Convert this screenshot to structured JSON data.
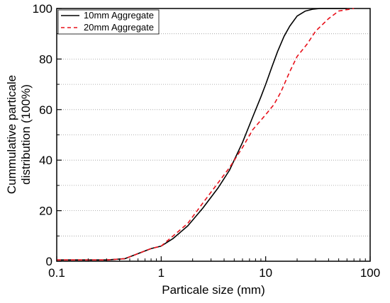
{
  "chart_data": {
    "type": "line",
    "xlabel": "Particale size (mm)",
    "ylabel_line1": "Cummulative particale",
    "ylabel_line2": "distribution (100%)",
    "x_scale": "log",
    "xlim": [
      0.1,
      100
    ],
    "ylim": [
      0,
      100
    ],
    "x_ticks": [
      0.1,
      1,
      10,
      100
    ],
    "x_tick_labels": [
      "0.1",
      "1",
      "10",
      "100"
    ],
    "y_ticks": [
      0,
      20,
      40,
      60,
      80,
      100
    ],
    "y_tick_labels": [
      "0",
      "20",
      "40",
      "60",
      "80",
      "100"
    ],
    "grid": "horizontal dotted",
    "legend_position": "top-left",
    "series": [
      {
        "name": "10mm Aggregate",
        "color": "#000000",
        "style": "solid",
        "x": [
          0.1,
          0.3,
          0.45,
          0.6,
          0.8,
          1.0,
          1.3,
          1.8,
          2.5,
          3.5,
          4.5,
          6.0,
          7.5,
          9.0,
          10.0,
          11.5,
          13.0,
          15.0,
          17.0,
          20.0,
          24.0,
          28.0,
          33.0,
          40.0,
          60.0
        ],
        "y": [
          0.5,
          0.5,
          1,
          3,
          5,
          6,
          9,
          14,
          21,
          29,
          36,
          47,
          57,
          65,
          70,
          77,
          83,
          89,
          93,
          97,
          99,
          99.7,
          100,
          100,
          100
        ]
      },
      {
        "name": "20mm Aggregate",
        "color": "#e8101a",
        "style": "dashed",
        "x": [
          0.1,
          0.3,
          0.45,
          0.6,
          0.8,
          1.0,
          1.3,
          1.8,
          2.5,
          3.5,
          4.5,
          6.0,
          7.5,
          10.0,
          12.0,
          14.0,
          17.0,
          20.0,
          25.0,
          30.0,
          40.0,
          50.0,
          70.0
        ],
        "y": [
          0.5,
          0.5,
          1,
          3,
          5,
          6,
          10,
          15,
          23,
          31,
          37,
          45,
          52,
          58,
          62,
          67,
          75,
          81,
          86,
          91,
          96,
          99,
          100
        ]
      }
    ]
  }
}
